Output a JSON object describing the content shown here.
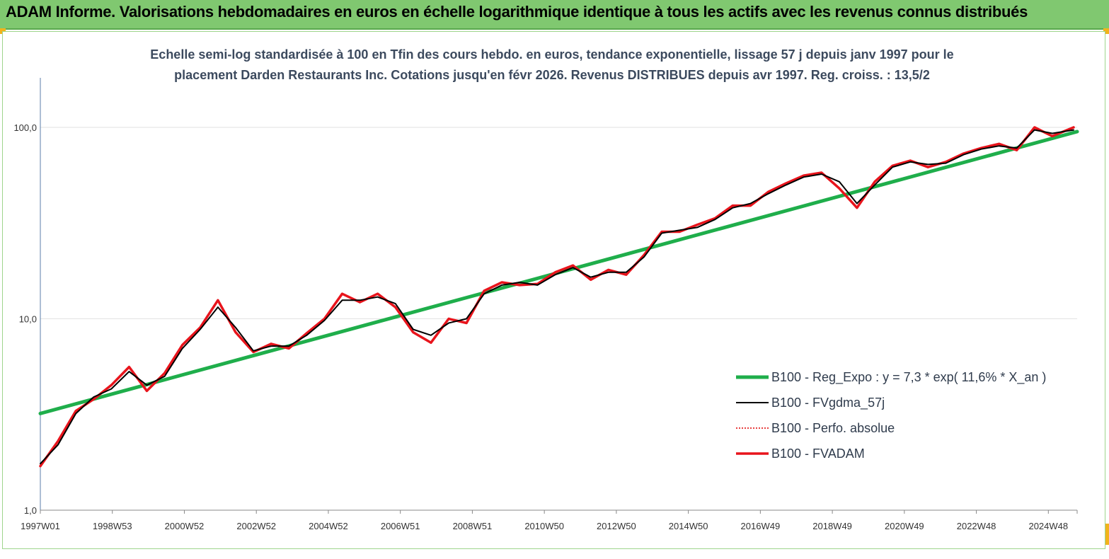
{
  "banner": {
    "title": "ADAM Informe. Valorisations hebdomadaires en euros en échelle logarithmique identique à tous les actifs avec les revenus connus distribués"
  },
  "colors": {
    "banner_bg": "#80c870",
    "regression": "#1fae4b",
    "fvgdma": "#000000",
    "perfo": "#e00000",
    "fvadam": "#e8141c",
    "axis": "#5b7ea8",
    "corner": "#f2b31b"
  },
  "chart_data": {
    "type": "line",
    "title": "Echelle semi-log standardisée à 100 en Tfin des cours hebdo. en euros, tendance exponentielle, lissage 57 j depuis janv 1997 pour le placement Darden Restaurants Inc. Cotations jusqu'en févr 2026. Revenus DISTRIBUES depuis avr 1997. Reg. croiss. : 13,5/2",
    "title_lines": [
      "Echelle semi-log standardisée à 100 en Tfin des cours hebdo. en euros, tendance exponentielle, lissage 57 j depuis janv 1997 pour le",
      "placement Darden Restaurants Inc. Cotations jusqu'en févr 2026. Revenus DISTRIBUES depuis avr 1997. Reg. croiss. : 13,5/2"
    ],
    "y_scale": "log",
    "ylim": [
      1,
      100
    ],
    "y_ticks": [
      "1,0",
      "10,0",
      "100,0"
    ],
    "x_range": [
      1997.0,
      2026.2
    ],
    "x_tick_labels": [
      "1997W01",
      "1998W53",
      "2000W52",
      "2002W52",
      "2004W52",
      "2006W51",
      "2008W51",
      "2010W50",
      "2012W50",
      "2014W50",
      "2016W49",
      "2018W49",
      "2020W49",
      "2022W48",
      "2024W48"
    ],
    "legend_position": "right",
    "series": [
      {
        "name": "B100 - Reg_Expo : y = 7,3 * exp( 11,6% *  X_an )",
        "kind": "regression",
        "x": [
          1997.0,
          2026.2
        ],
        "values": [
          3.2,
          95
        ]
      },
      {
        "name": "B100 - FVgdma_57j",
        "kind": "line",
        "x": [
          1997.0,
          1997.5,
          1998.0,
          1998.5,
          1999.0,
          1999.5,
          2000.0,
          2000.5,
          2001.0,
          2001.5,
          2002.0,
          2002.5,
          2003.0,
          2003.5,
          2004.0,
          2004.5,
          2005.0,
          2005.5,
          2006.0,
          2006.5,
          2007.0,
          2007.5,
          2008.0,
          2008.5,
          2009.0,
          2009.5,
          2010.0,
          2010.5,
          2011.0,
          2011.5,
          2012.0,
          2012.5,
          2013.0,
          2013.5,
          2014.0,
          2014.5,
          2015.0,
          2015.5,
          2016.0,
          2016.5,
          2017.0,
          2017.5,
          2018.0,
          2018.5,
          2019.0,
          2019.5,
          2020.0,
          2020.5,
          2021.0,
          2021.5,
          2022.0,
          2022.5,
          2023.0,
          2023.5,
          2024.0,
          2024.5,
          2025.0,
          2025.5,
          2026.1
        ],
        "values": [
          1.75,
          2.2,
          3.2,
          3.9,
          4.3,
          5.3,
          4.5,
          5.0,
          7.0,
          8.8,
          11.5,
          9.0,
          6.8,
          7.2,
          7.2,
          8.2,
          9.8,
          12.5,
          12.5,
          13.0,
          12.0,
          8.8,
          8.2,
          9.5,
          10.0,
          13.5,
          15.0,
          15.5,
          15.0,
          17.0,
          18.5,
          16.5,
          17.5,
          17.5,
          21.0,
          28.0,
          29.0,
          30.0,
          33.0,
          38.0,
          40.0,
          45.0,
          50.0,
          55.0,
          57.0,
          52.0,
          40.0,
          50.0,
          62.0,
          66.0,
          64.0,
          65.0,
          72.0,
          77.0,
          80.0,
          78.0,
          97.0,
          93.0,
          97.0
        ]
      },
      {
        "name": "B100 - Perfo. absolue",
        "kind": "dotted",
        "x": [
          1997.0,
          1997.5,
          1998.0,
          1998.5,
          1999.0,
          1999.5,
          2000.0,
          2000.5,
          2001.0,
          2001.5,
          2002.0,
          2002.5,
          2003.0,
          2003.5,
          2004.0,
          2004.5,
          2005.0,
          2005.5,
          2006.0,
          2006.5,
          2007.0,
          2007.5,
          2008.0,
          2008.5,
          2009.0,
          2009.5,
          2010.0,
          2010.5,
          2011.0,
          2011.5,
          2012.0,
          2012.5,
          2013.0,
          2013.5,
          2014.0,
          2014.5,
          2015.0,
          2015.5,
          2016.0,
          2016.5,
          2017.0,
          2017.5,
          2018.0,
          2018.5,
          2019.0,
          2019.5,
          2020.0,
          2020.5,
          2021.0,
          2021.5,
          2022.0,
          2022.5,
          2023.0,
          2023.5,
          2024.0,
          2024.5,
          2025.0,
          2025.5,
          2026.1
        ],
        "values": [
          1.7,
          2.3,
          3.3,
          3.8,
          4.5,
          5.6,
          4.2,
          5.2,
          7.3,
          9.0,
          12.5,
          8.5,
          6.7,
          7.4,
          7.0,
          8.4,
          10.0,
          13.5,
          12.2,
          13.5,
          11.5,
          8.5,
          7.5,
          10.0,
          9.5,
          14.0,
          15.5,
          15.0,
          15.2,
          17.5,
          19.0,
          16.0,
          18.0,
          17.0,
          21.5,
          28.5,
          28.5,
          31.0,
          33.5,
          39.0,
          39.0,
          46.0,
          51.0,
          56.0,
          58.0,
          48.0,
          38.0,
          52.0,
          63.0,
          67.0,
          62.0,
          66.0,
          73.0,
          78.0,
          82.0,
          76.0,
          100.0,
          90.0,
          100.0
        ]
      },
      {
        "name": "B100 - FVADAM",
        "kind": "line",
        "x": [
          1997.0,
          1997.5,
          1998.0,
          1998.5,
          1999.0,
          1999.5,
          2000.0,
          2000.5,
          2001.0,
          2001.5,
          2002.0,
          2002.5,
          2003.0,
          2003.5,
          2004.0,
          2004.5,
          2005.0,
          2005.5,
          2006.0,
          2006.5,
          2007.0,
          2007.5,
          2008.0,
          2008.5,
          2009.0,
          2009.5,
          2010.0,
          2010.5,
          2011.0,
          2011.5,
          2012.0,
          2012.5,
          2013.0,
          2013.5,
          2014.0,
          2014.5,
          2015.0,
          2015.5,
          2016.0,
          2016.5,
          2017.0,
          2017.5,
          2018.0,
          2018.5,
          2019.0,
          2019.5,
          2020.0,
          2020.5,
          2021.0,
          2021.5,
          2022.0,
          2022.5,
          2023.0,
          2023.5,
          2024.0,
          2024.5,
          2025.0,
          2025.5,
          2026.1
        ],
        "values": [
          1.7,
          2.3,
          3.3,
          3.8,
          4.5,
          5.6,
          4.2,
          5.2,
          7.3,
          9.0,
          12.5,
          8.5,
          6.7,
          7.4,
          7.0,
          8.4,
          10.0,
          13.5,
          12.2,
          13.5,
          11.5,
          8.5,
          7.5,
          10.0,
          9.5,
          14.0,
          15.5,
          15.0,
          15.2,
          17.5,
          19.0,
          16.0,
          18.0,
          17.0,
          21.5,
          28.5,
          28.5,
          31.0,
          33.5,
          39.0,
          39.0,
          46.0,
          51.0,
          56.0,
          58.0,
          48.0,
          38.0,
          52.0,
          63.0,
          67.0,
          62.0,
          66.0,
          73.0,
          78.0,
          82.0,
          76.0,
          100.0,
          90.0,
          100.0
        ]
      }
    ]
  }
}
